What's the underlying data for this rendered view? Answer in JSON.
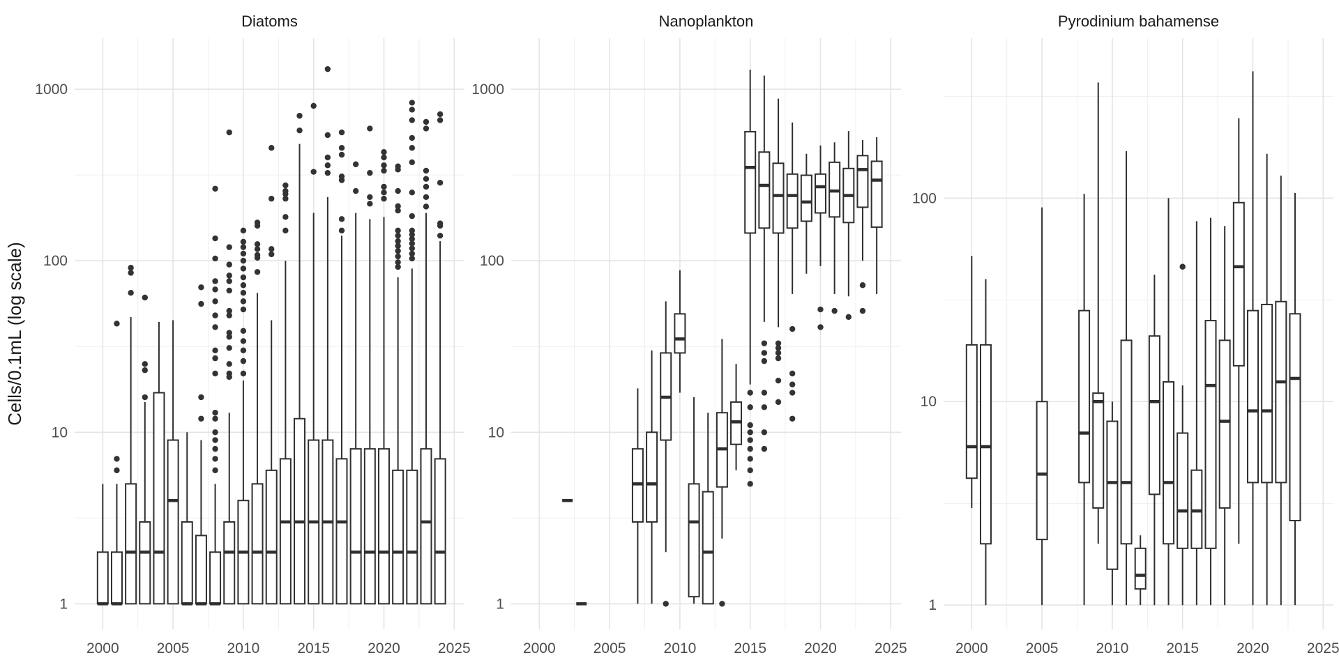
{
  "figure": {
    "y_axis_title": "Cells/0.1mL (log scale)",
    "x_tick_labels": [
      "2000",
      "2005",
      "2010",
      "2015",
      "2020",
      "2025"
    ],
    "colors": {
      "background": "#ffffff",
      "box_stroke": "#2f2f2f",
      "outlier_fill": "#333333",
      "grid_major": "#e4e4e4",
      "grid_minor": "#efefef",
      "tick_label": "#4d4d4d",
      "title_text": "#1a1a1a"
    }
  },
  "chart_data": [
    {
      "type": "boxplot",
      "title": "Diatoms",
      "xlabel": "",
      "ylabel": "Cells/0.1mL (log scale)",
      "x_ticks": [
        2000,
        2005,
        2010,
        2015,
        2020,
        2025
      ],
      "x_minor": [
        2002.5,
        2007.5,
        2012.5,
        2017.5,
        2022.5
      ],
      "xlim": [
        1998.0,
        2025.73
      ],
      "y_tick_labels": [
        1,
        10,
        100,
        1000
      ],
      "y_minor": [
        3.16,
        31.6,
        316
      ],
      "ylim": [
        0.71,
        1980
      ],
      "boxes": [
        {
          "year": 2000,
          "lo": 1,
          "q1": 1,
          "med": 1,
          "q3": 2,
          "hi": 5,
          "outliers": []
        },
        {
          "year": 2001,
          "lo": 1,
          "q1": 1,
          "med": 1,
          "q3": 2,
          "hi": 5,
          "outliers": [
            6,
            7,
            43
          ]
        },
        {
          "year": 2002,
          "lo": 1,
          "q1": 1,
          "med": 2,
          "q3": 5,
          "hi": 47,
          "outliers": [
            65,
            85,
            91
          ]
        },
        {
          "year": 2003,
          "lo": 1,
          "q1": 1,
          "med": 2,
          "q3": 3,
          "hi": 15,
          "outliers": [
            16,
            23,
            25,
            61
          ]
        },
        {
          "year": 2004,
          "lo": 1,
          "q1": 1,
          "med": 2,
          "q3": 17,
          "hi": 44,
          "outliers": []
        },
        {
          "year": 2005,
          "lo": 1,
          "q1": 1,
          "med": 4,
          "q3": 9,
          "hi": 45,
          "outliers": []
        },
        {
          "year": 2006,
          "lo": 1,
          "q1": 1,
          "med": 1,
          "q3": 3,
          "hi": 10,
          "outliers": []
        },
        {
          "year": 2007,
          "lo": 1,
          "q1": 1,
          "med": 1,
          "q3": 2.5,
          "hi": 9,
          "outliers": [
            12,
            16,
            56,
            70
          ]
        },
        {
          "year": 2008,
          "lo": 1,
          "q1": 1,
          "med": 1,
          "q3": 2,
          "hi": 5,
          "outliers": [
            6,
            7,
            8,
            9,
            10,
            12,
            13,
            22,
            27,
            30,
            41,
            48,
            58,
            68,
            76,
            103,
            135,
            263
          ]
        },
        {
          "year": 2009,
          "lo": 1,
          "q1": 1,
          "med": 2,
          "q3": 3,
          "hi": 13,
          "outliers": [
            21,
            22,
            25,
            31,
            36,
            38,
            48,
            51,
            67,
            76,
            82,
            95,
            120,
            560
          ]
        },
        {
          "year": 2010,
          "lo": 1,
          "q1": 1,
          "med": 2,
          "q3": 4,
          "hi": 20,
          "outliers": [
            22,
            26,
            30,
            34,
            39,
            52,
            58,
            65,
            72,
            80,
            90,
            100,
            110,
            120,
            129,
            150
          ]
        },
        {
          "year": 2011,
          "lo": 1,
          "q1": 1,
          "med": 2,
          "q3": 5,
          "hi": 65,
          "outliers": [
            86,
            104,
            108,
            117,
            125,
            160,
            167
          ]
        },
        {
          "year": 2012,
          "lo": 1,
          "q1": 1,
          "med": 2,
          "q3": 6,
          "hi": 45,
          "outliers": [
            109,
            117,
            230,
            455
          ]
        },
        {
          "year": 2013,
          "lo": 1,
          "q1": 1,
          "med": 3,
          "q3": 7,
          "hi": 100,
          "outliers": [
            150,
            180,
            230,
            245,
            255,
            275
          ]
        },
        {
          "year": 2014,
          "lo": 1,
          "q1": 1,
          "med": 3,
          "q3": 12,
          "hi": 480,
          "outliers": [
            575,
            700
          ]
        },
        {
          "year": 2015,
          "lo": 1,
          "q1": 1,
          "med": 3,
          "q3": 9,
          "hi": 190,
          "outliers": [
            330,
            800
          ]
        },
        {
          "year": 2016,
          "lo": 1,
          "q1": 1,
          "med": 3,
          "q3": 9,
          "hi": 235,
          "outliers": [
            325,
            360,
            400,
            540,
            1310
          ]
        },
        {
          "year": 2017,
          "lo": 1,
          "q1": 1,
          "med": 3,
          "q3": 7,
          "hi": 140,
          "outliers": [
            150,
            175,
            295,
            310,
            415,
            455,
            560
          ]
        },
        {
          "year": 2018,
          "lo": 1,
          "q1": 1,
          "med": 2,
          "q3": 8,
          "hi": 190,
          "outliers": [
            255,
            365
          ]
        },
        {
          "year": 2019,
          "lo": 1,
          "q1": 1,
          "med": 2,
          "q3": 8,
          "hi": 175,
          "outliers": [
            215,
            235,
            325,
            590
          ]
        },
        {
          "year": 2020,
          "lo": 1,
          "q1": 1,
          "med": 2,
          "q3": 8,
          "hi": 180,
          "outliers": [
            230,
            250,
            270,
            335,
            360,
            400,
            430
          ]
        },
        {
          "year": 2021,
          "lo": 1,
          "q1": 1,
          "med": 2,
          "q3": 6,
          "hi": 80,
          "outliers": [
            92,
            98,
            106,
            114,
            122,
            130,
            140,
            150,
            196,
            208,
            255,
            340,
            355
          ]
        },
        {
          "year": 2022,
          "lo": 1,
          "q1": 1,
          "med": 2,
          "q3": 6,
          "hi": 90,
          "outliers": [
            103,
            110,
            118,
            126,
            134,
            142,
            150,
            182,
            250,
            375,
            455,
            520,
            660,
            760,
            835
          ]
        },
        {
          "year": 2023,
          "lo": 1,
          "q1": 1,
          "med": 3,
          "q3": 8,
          "hi": 190,
          "outliers": [
            207,
            235,
            270,
            300,
            335,
            590,
            645
          ]
        },
        {
          "year": 2024,
          "lo": 1,
          "q1": 1,
          "med": 2,
          "q3": 7,
          "hi": 130,
          "outliers": [
            140,
            160,
            165,
            285,
            660,
            715
          ]
        }
      ]
    },
    {
      "type": "boxplot",
      "title": "Nanoplankton",
      "xlabel": "",
      "ylabel": "Cells/0.1mL (log scale)",
      "x_ticks": [
        2000,
        2005,
        2010,
        2015,
        2020,
        2025
      ],
      "x_minor": [
        2002.5,
        2007.5,
        2012.5,
        2017.5,
        2022.5
      ],
      "xlim": [
        1998.0,
        2025.73
      ],
      "y_tick_labels": [
        1,
        10,
        100,
        1000
      ],
      "y_minor": [
        3.16,
        31.6,
        316
      ],
      "ylim": [
        0.71,
        1980
      ],
      "boxes": [
        {
          "year": 2002,
          "lo": 4,
          "q1": 4,
          "med": 4,
          "q3": 4,
          "hi": 4,
          "outliers": []
        },
        {
          "year": 2003,
          "lo": 1,
          "q1": 1,
          "med": 1,
          "q3": 1,
          "hi": 1,
          "outliers": []
        },
        {
          "year": 2007,
          "lo": 1,
          "q1": 3,
          "med": 5,
          "q3": 8,
          "hi": 18,
          "outliers": []
        },
        {
          "year": 2008,
          "lo": 1,
          "q1": 3,
          "med": 5,
          "q3": 10,
          "hi": 30,
          "outliers": []
        },
        {
          "year": 2009,
          "lo": 2,
          "q1": 9,
          "med": 16,
          "q3": 29,
          "hi": 58,
          "outliers": [
            1
          ]
        },
        {
          "year": 2010,
          "lo": 17,
          "q1": 29,
          "med": 35,
          "q3": 49,
          "hi": 88,
          "outliers": []
        },
        {
          "year": 2011,
          "lo": 1,
          "q1": 1.1,
          "med": 3,
          "q3": 5,
          "hi": 16,
          "outliers": []
        },
        {
          "year": 2012,
          "lo": 1,
          "q1": 1,
          "med": 2,
          "q3": 4.5,
          "hi": 13,
          "outliers": []
        },
        {
          "year": 2013,
          "lo": 2.4,
          "q1": 4.8,
          "med": 8,
          "q3": 13,
          "hi": 35,
          "outliers": [
            1
          ]
        },
        {
          "year": 2014,
          "lo": 6,
          "q1": 8.5,
          "med": 11.5,
          "q3": 15,
          "hi": 25,
          "outliers": []
        },
        {
          "year": 2015,
          "lo": 19,
          "q1": 145,
          "med": 350,
          "q3": 565,
          "hi": 1300,
          "outliers": [
            5,
            6,
            7,
            8,
            9,
            10,
            11,
            14,
            17
          ]
        },
        {
          "year": 2016,
          "lo": 44,
          "q1": 155,
          "med": 275,
          "q3": 430,
          "hi": 1200,
          "outliers": [
            8,
            10,
            14,
            17,
            26,
            29,
            33
          ]
        },
        {
          "year": 2017,
          "lo": 41,
          "q1": 145,
          "med": 240,
          "q3": 370,
          "hi": 880,
          "outliers": [
            15,
            20,
            27,
            29,
            31,
            33
          ]
        },
        {
          "year": 2018,
          "lo": 64,
          "q1": 155,
          "med": 240,
          "q3": 320,
          "hi": 640,
          "outliers": [
            12,
            17,
            19,
            22,
            40
          ]
        },
        {
          "year": 2019,
          "lo": 84,
          "q1": 170,
          "med": 220,
          "q3": 315,
          "hi": 420,
          "outliers": []
        },
        {
          "year": 2020,
          "lo": 93,
          "q1": 190,
          "med": 270,
          "q3": 320,
          "hi": 470,
          "outliers": [
            41,
            52
          ]
        },
        {
          "year": 2021,
          "lo": 64,
          "q1": 180,
          "med": 255,
          "q3": 375,
          "hi": 490,
          "outliers": [
            51
          ]
        },
        {
          "year": 2022,
          "lo": 62,
          "q1": 167,
          "med": 240,
          "q3": 345,
          "hi": 570,
          "outliers": [
            47
          ]
        },
        {
          "year": 2023,
          "lo": 100,
          "q1": 205,
          "med": 340,
          "q3": 410,
          "hi": 505,
          "outliers": [
            51,
            72
          ]
        },
        {
          "year": 2024,
          "lo": 64,
          "q1": 157,
          "med": 295,
          "q3": 380,
          "hi": 525,
          "outliers": []
        }
      ]
    },
    {
      "type": "boxplot",
      "title": "Pyrodinium bahamense",
      "xlabel": "",
      "ylabel": "Cells/0.1mL (log scale)",
      "x_ticks": [
        2000,
        2005,
        2010,
        2015,
        2020,
        2025
      ],
      "x_minor": [
        2002.5,
        2007.5,
        2012.5,
        2017.5,
        2022.5
      ],
      "xlim": [
        1998.0,
        2025.73
      ],
      "y_tick_labels": [
        1,
        10,
        100
      ],
      "y_minor": [
        3.16,
        31.6,
        316
      ],
      "ylim": [
        0.76,
        610
      ],
      "boxes": [
        {
          "year": 2000,
          "lo": 3,
          "q1": 4.2,
          "med": 6,
          "q3": 19,
          "hi": 52,
          "outliers": []
        },
        {
          "year": 2001,
          "lo": 1,
          "q1": 2,
          "med": 6,
          "q3": 19,
          "hi": 40,
          "outliers": []
        },
        {
          "year": 2005,
          "lo": 1,
          "q1": 2.1,
          "med": 4.4,
          "q3": 10,
          "hi": 90,
          "outliers": []
        },
        {
          "year": 2008,
          "lo": 1,
          "q1": 4,
          "med": 7,
          "q3": 28,
          "hi": 105,
          "outliers": []
        },
        {
          "year": 2009,
          "lo": 2,
          "q1": 3,
          "med": 10,
          "q3": 11,
          "hi": 370,
          "outliers": []
        },
        {
          "year": 2010,
          "lo": 1,
          "q1": 1.5,
          "med": 4,
          "q3": 8,
          "hi": 10,
          "outliers": []
        },
        {
          "year": 2011,
          "lo": 1,
          "q1": 2,
          "med": 4,
          "q3": 20,
          "hi": 170,
          "outliers": []
        },
        {
          "year": 2012,
          "lo": 1,
          "q1": 1.2,
          "med": 1.4,
          "q3": 1.9,
          "hi": 2.2,
          "outliers": []
        },
        {
          "year": 2013,
          "lo": 1,
          "q1": 3.5,
          "med": 10,
          "q3": 21,
          "hi": 42,
          "outliers": []
        },
        {
          "year": 2014,
          "lo": 1,
          "q1": 2,
          "med": 4,
          "q3": 12.5,
          "hi": 100,
          "outliers": []
        },
        {
          "year": 2015,
          "lo": 1,
          "q1": 1.9,
          "med": 2.9,
          "q3": 7,
          "hi": 12,
          "outliers": [
            46
          ]
        },
        {
          "year": 2016,
          "lo": 1,
          "q1": 1.9,
          "med": 2.9,
          "q3": 4.6,
          "hi": 77,
          "outliers": []
        },
        {
          "year": 2017,
          "lo": 1,
          "q1": 1.9,
          "med": 12,
          "q3": 25,
          "hi": 80,
          "outliers": []
        },
        {
          "year": 2018,
          "lo": 1,
          "q1": 3,
          "med": 8,
          "q3": 20,
          "hi": 73,
          "outliers": []
        },
        {
          "year": 2019,
          "lo": 2,
          "q1": 15,
          "med": 46,
          "q3": 95,
          "hi": 247,
          "outliers": []
        },
        {
          "year": 2020,
          "lo": 1,
          "q1": 4,
          "med": 9,
          "q3": 28,
          "hi": 420,
          "outliers": []
        },
        {
          "year": 2021,
          "lo": 1,
          "q1": 4,
          "med": 9,
          "q3": 30,
          "hi": 165,
          "outliers": []
        },
        {
          "year": 2022,
          "lo": 1,
          "q1": 4,
          "med": 12.5,
          "q3": 31,
          "hi": 129,
          "outliers": []
        },
        {
          "year": 2023,
          "lo": 1,
          "q1": 2.6,
          "med": 13,
          "q3": 27,
          "hi": 106,
          "outliers": []
        }
      ]
    }
  ],
  "layout_note": "three facet panels sharing one x axis range; each panel prints its own y tick labels and x tick labels"
}
